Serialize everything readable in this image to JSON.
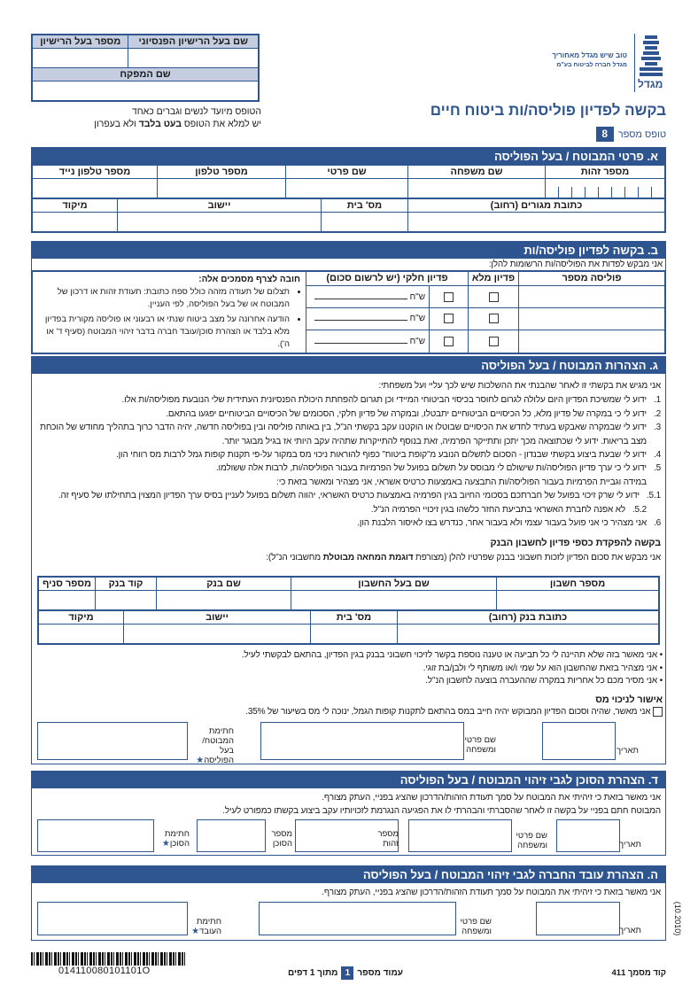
{
  "license_box": {
    "licensee_name": "שם בעל הרישיון הפנסיוני",
    "licensee_number": "מספר בעל הרישיון",
    "supervisor": "שם המפקח"
  },
  "notes": [
    "הטופס מיועד לנשים וגברים כאחד",
    "יש למלא את הטופס ",
    "בעט בלבד",
    " ולא בעפרון"
  ],
  "logo": {
    "name": "מגדל",
    "tagline": "טוב שיש מגדל מאחוריך",
    "subline": "מגדל חברה לביטוח בע\"מ"
  },
  "title": "בקשה לפדיון פוליסה/ות ביטוח חיים",
  "form_number": {
    "label": "טופס מספר",
    "value": "8"
  },
  "colors": {
    "primary": "#2e5590",
    "header_shade": "#c5cde0"
  },
  "section_a": {
    "title": "א. פרטי המבוטח / בעל הפוליסה",
    "row1": [
      "מספר זהות",
      "שם משפחה",
      "שם פרטי",
      "מספר טלפון",
      "מספר טלפון נייד"
    ],
    "row2": [
      "כתובת מגורים (רחוב)",
      "מס' בית",
      "יישוב",
      "מיקוד"
    ]
  },
  "section_b": {
    "title": "ב. בקשה לפדיון פוליסה/ות",
    "intro": "אני מבקש לפדות את הפוליסה/ות הרשומות להלן:",
    "headers": [
      "פוליסה מספר",
      "פדיון מלא",
      "פדיון חלקי (יש לרשום סכום)",
      "חובה לצרף מסמכים אלה:"
    ],
    "currency": "ש\"ח",
    "docs": [
      "תצלום של תעודה מזהה כולל ספח כתובת: תעודת זהות או דרכון של המבוטח או של בעל הפוליסה, לפי העניין.",
      "הודעה אחרונה על מצב ביטוח שנתי או רבעוני או פוליסה מקורית בפדיון מלא בלבד או הצהרת סוכן/עובד חברה בדבר זיהוי המבוטח (סעיף ד' או ה')."
    ]
  },
  "section_g": {
    "title": "ג. הצהרות המבוטח / בעל הפוליסה",
    "intro": "אני מגיש את בקשתי זו לאחר שהבנתי את ההשלכות שיש לכך עליי ועל משפחתי:",
    "items": [
      {
        "n": "1.",
        "t": "ידוע לי שמשיכת הפדיון היום עלולה לגרום לחוסר בכיסוי הביטוחי המיידי וכן תגרום להפחתת היכולת הפנסיונית העתידית שלי הנובעת מפוליסה/ות אלו."
      },
      {
        "n": "2.",
        "t": "ידוע לי כי במקרה של פדיון מלא, כל הכיסויים הביטוחיים יתבטלו, ובמקרה של פדיון חלקי, הסכומים של הכיסויים הביטוחיים יפגעו בהתאם."
      },
      {
        "n": "3.",
        "t": "ידוע לי שבמקרה שאבקש בעתיד לחדש את הכיסויים שבוטלו או הוקטנו עקב בקשתי הנ\"ל, בין באותה פוליסה ובין בפוליסה חדשה, יהיה הדבר כרוך בתהליך מחודש של הוכחת מצב בריאות. ידוע לי שכתוצאה מכך יתכן ותתייקר הפרמיה, זאת בנוסף להתייקרות שתהיה עקב היותי אז בגיל מבוגר יותר."
      },
      {
        "n": "4.",
        "t": "ידוע לי שבעת ביצוע בקשתי שבנדון - הסכום לתשלום הנובע מ\"קופת ביטוח\" כפוף להוראות ניכוי מס במקור על-פי תקנות קופות גמל לרבות מס רווחי הון."
      },
      {
        "n": "5.",
        "t": "ידוע לי כי ערך פדיון הפוליסה/ות שישולם לי מבוסס על תשלום בפועל של הפרמיות בעבור הפוליסה/ות, לרבות אלה ששולמו."
      }
    ],
    "credit_intro": "במידה וגביית הפרמיות בעבור הפוליסה/ות התבצעה באמצעות כרטיס אשראי, אני מצהיר ומאשר בזאת כי:",
    "sub_items": [
      {
        "n": "5.1.",
        "t": "ידוע לי שרק זיכוי בפועל של חברתכם בסכומי החיוב בגין הפרמיה באמצעות כרטיס האשראי, יהווה תשלום בפועל לעניין בסיס ערך הפדיון המצוין בתחילתו של סעיף זה."
      },
      {
        "n": "5.2.",
        "t": "לא אפנה לחברת האשראי בתביעת החזר כלשהו בגין זיכויי הפרמיה הנ\"ל."
      }
    ],
    "item6": {
      "n": "6.",
      "t": "אני מצהיר כי אני פועל בעבור עצמי ולא בעבור אחר, כנדרש בצו לאיסור הלבנת הון."
    },
    "bank_title": "בקשה להפקדת כספי פדיון לחשבון הבנק",
    "bank_intro_a": "אני מבקש את סכום הפדיון לזכות חשבוני בבנק שפרטיו להלן (מצורפת ",
    "bank_intro_b": "דוגמת המחאה מבוטלת",
    "bank_intro_c": " מחשבוני הנ\"ל):",
    "bank_row1": [
      "מספר חשבון",
      "שם בעל החשבון",
      "שם בנק",
      "קוד בנק",
      "מספר סניף"
    ],
    "bank_row2": [
      "כתובת בנק (רחוב)",
      "מס' בית",
      "יישוב",
      "מיקוד"
    ],
    "bullets": [
      "אני מאשר בזה שלא תהיינה לי כל תביעה או טענה נוספת בקשר לזיכוי חשבוני בבנק בגין הפדיון, בהתאם לבקשתי לעיל.",
      "אני מצהיר בזאת שהחשבון הוא על שמי ו/או משותף לי ולבן/בת זוגי.",
      "אני מסיר מכם כל אחריות במקרה שההעברה בוצעה לחשבון הנ\"ל."
    ],
    "tax_title": "אישור לניכוי מס",
    "tax_text": "אני מאשר, שהיה וסכום הפדיון המבוקש יהיה חייב במס בהתאם לתקנות קופות הגמל, ינוכה לי מס בשיעור של 35%.",
    "sig_labels": {
      "date": "תאריך",
      "name": "שם פרטי ומשפחה",
      "signature": "חתימת המבוטח/ בעל הפוליסה"
    }
  },
  "section_d": {
    "title": "ד. הצהרת הסוכן לגבי זיהוי המבוטח / בעל הפוליסה",
    "line1": "אני מאשר בזאת כי זיהיתי את המבוטח על סמך תעודת הזהות/הדרכון שהציג בפניי, העתק מצורף.",
    "line2": "המבוטח חתם בפניי על בקשה זו לאחר שהסברתי והבהרתי לו את הפגיעה הנגרמת לזכויותיו עקב ביצוע בקשתו כמפורט לעיל.",
    "labels": {
      "date": "תאריך",
      "name": "שם פרטי ומשפחה",
      "id": "מספר זהות",
      "agent_no": "מספר הסוכן",
      "signature": "חתימת הסוכן"
    }
  },
  "section_h": {
    "title": "ה. הצהרת עובד החברה לגבי זיהוי המבוטח / בעל הפוליסה",
    "line1": "אני מאשר בזאת כי זיהיתי את המבוטח על סמך תעודת הזהות/הדרכון שהציג בפניי, העתק מצורף.",
    "labels": {
      "date": "תאריך",
      "name": "שם פרטי ומשפחה",
      "signature": "חתימת העובד"
    }
  },
  "version": "(10.2010)",
  "footer": {
    "barcode_number": "014110080101101O",
    "page_label": "עמוד מספר",
    "page_number": "1",
    "page_of": "מתוך 1 דפים",
    "doc_code": "קוד מסמך 411"
  }
}
